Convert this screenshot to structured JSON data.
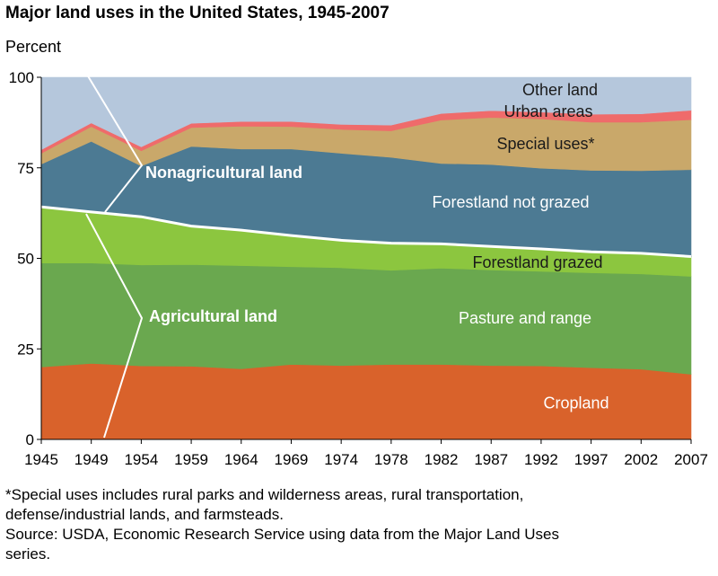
{
  "chart_data": {
    "type": "area",
    "stacked": true,
    "title": "Major land uses in the United States, 1945-2007",
    "ylabel": "Percent",
    "xlabel": "",
    "ylim": [
      0,
      100
    ],
    "yticks": [
      0,
      25,
      50,
      75,
      100
    ],
    "x": [
      "1945",
      "1949",
      "1954",
      "1959",
      "1964",
      "1969",
      "1974",
      "1978",
      "1982",
      "1987",
      "1992",
      "1997",
      "2002",
      "2007"
    ],
    "series": [
      {
        "name": "Cropland",
        "color": "#d9622b",
        "label_color": "#ffffff",
        "values": [
          20,
          21,
          20.3,
          20.2,
          19.5,
          20.7,
          20.4,
          20.7,
          20.7,
          20.4,
          20.3,
          19.8,
          19.4,
          18
        ]
      },
      {
        "name": "Pasture and range",
        "color": "#6aa84f",
        "label_color": "#ffffff",
        "values": [
          28.7,
          27.7,
          27.9,
          28.1,
          28.5,
          27,
          27,
          26,
          26.6,
          26.4,
          26.1,
          26.2,
          26.3,
          27
        ]
      },
      {
        "name": "Forestland grazed",
        "color": "#8cc63f",
        "label_color": "#1a1a1a",
        "values": [
          15.5,
          14.1,
          13.3,
          10.6,
          9.8,
          8.6,
          7.6,
          7.5,
          6.7,
          6.5,
          6.2,
          5.8,
          5.7,
          5.5
        ]
      },
      {
        "name": "Forestland not grazed",
        "color": "#4c7a93",
        "label_color": "#ffffff",
        "values": [
          11.8,
          19.5,
          14,
          22,
          22.4,
          23.9,
          24,
          23.7,
          22.2,
          22.6,
          22.3,
          22.5,
          22.8,
          24
        ]
      },
      {
        "name": "Special uses*",
        "color": "#c9a86a",
        "label_color": "#1a1a1a",
        "values": [
          3,
          4.1,
          4.2,
          5.2,
          6.3,
          6.2,
          6.6,
          7.3,
          12,
          13,
          13.6,
          13.3,
          13.4,
          13.8
        ]
      },
      {
        "name": "Urban areas",
        "color": "#ef6b6b",
        "label_color": "#1a1a1a",
        "values": [
          1,
          1,
          1.1,
          1.2,
          1.3,
          1.4,
          1.4,
          1.6,
          1.8,
          1.9,
          1.9,
          2.2,
          2.3,
          2.6
        ]
      },
      {
        "name": "Other land",
        "color": "#b5c7dc",
        "label_color": "#1a1a1a",
        "values": [
          20,
          12.6,
          19.2,
          12.7,
          12.2,
          12.2,
          13,
          13.2,
          10,
          9.2,
          9.6,
          10.2,
          10.1,
          9.1
        ]
      }
    ],
    "group_labels": [
      {
        "name": "Nonagricultural land"
      },
      {
        "name": "Agricultural land"
      }
    ]
  },
  "footnote": [
    "*Special uses includes rural parks and wilderness areas, rural transportation,",
    "defense/industrial lands, and farmsteads.",
    "Source: USDA, Economic Research Service using data from the Major Land Uses",
    "series."
  ]
}
